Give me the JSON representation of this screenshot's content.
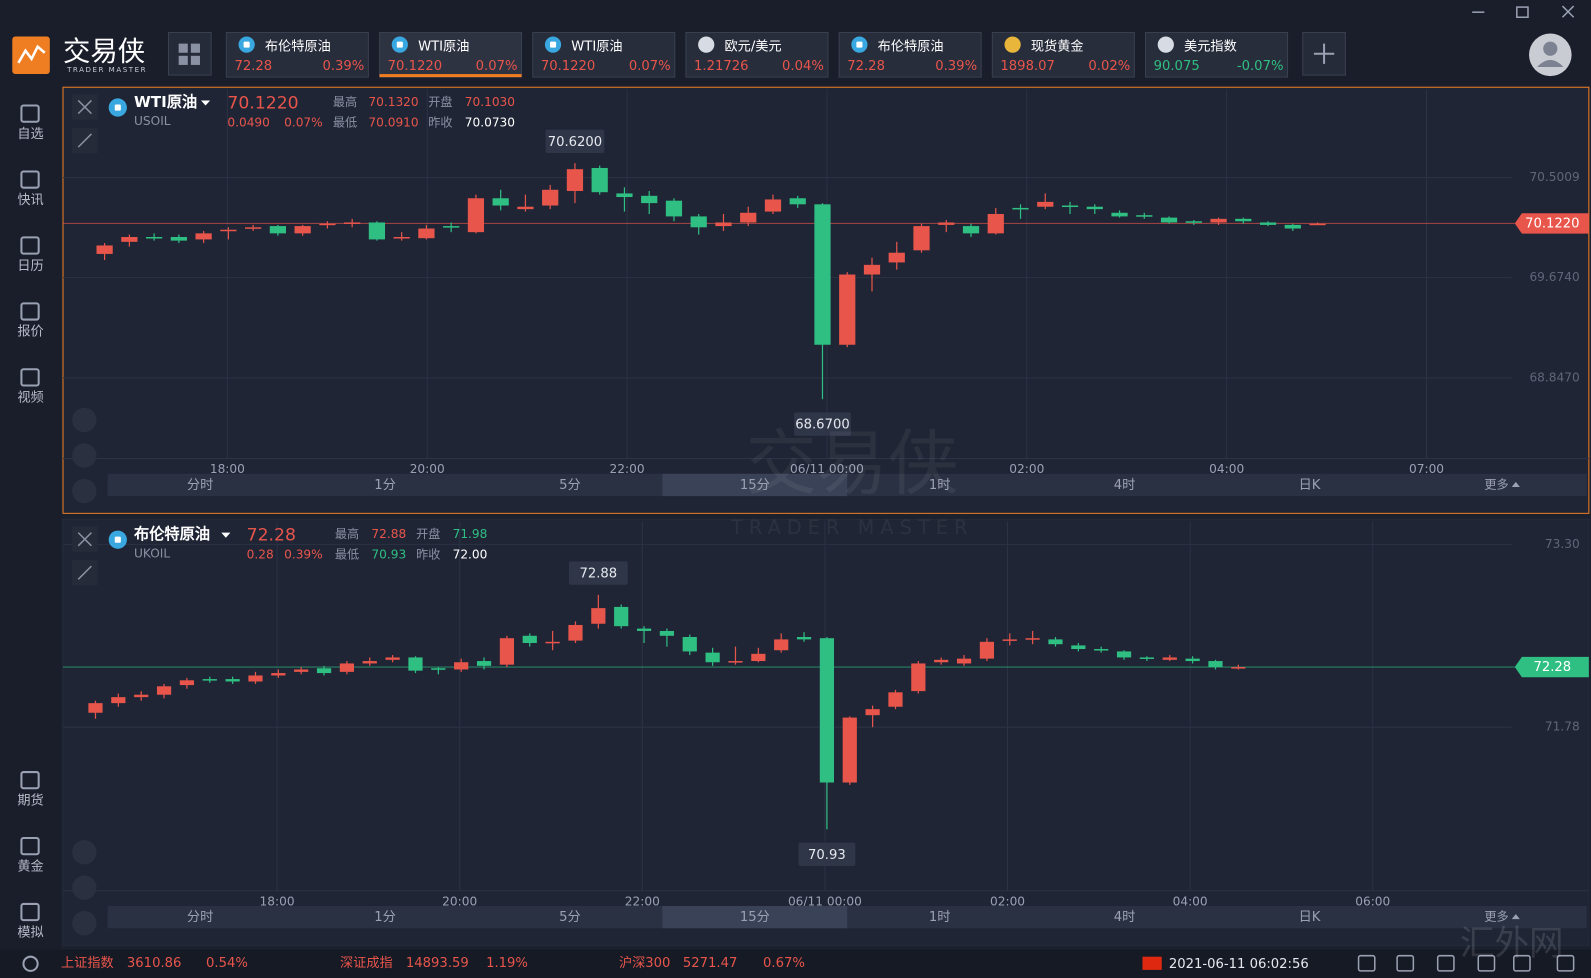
{
  "app": {
    "name": "交易侠",
    "subtitle": "TRADER MASTER",
    "site_watermark": "汇外网"
  },
  "tabs": [
    {
      "name": "布伦特原油",
      "price": "72.28",
      "change": "0.39%"
    },
    {
      "name": "WTI原油",
      "price": "70.1220",
      "change": "0.07%"
    },
    {
      "name": "WTI原油",
      "price": "70.1220",
      "change": "0.07%"
    },
    {
      "name": "欧元/美元",
      "price": "1.21726",
      "change": "0.04%"
    },
    {
      "name": "布伦特原油",
      "price": "72.28",
      "change": "0.39%"
    },
    {
      "name": "现货黄金",
      "price": "1898.07",
      "change": "0.02%"
    },
    {
      "name": "美元指数",
      "price": "90.075",
      "change": "-0.07%"
    }
  ],
  "sidebar": {
    "top": [
      "自选",
      "快讯",
      "日历",
      "报价",
      "视频"
    ],
    "bottom": [
      "期货",
      "黄金",
      "模拟"
    ]
  },
  "panels": [
    {
      "name": "WTI原油",
      "symbol": "USOIL",
      "price": "70.1220",
      "change": "0.0490",
      "change_pct": "0.07%",
      "stats": [
        {
          "label": "最高",
          "value": "70.1320",
          "color": "#e8554b"
        },
        {
          "label": "开盘",
          "value": "70.1030",
          "color": "#e8554b"
        },
        {
          "label": "最低",
          "value": "70.0910",
          "color": "#e8554b"
        },
        {
          "label": "昨收",
          "value": "70.0730",
          "color": "#ffffff"
        }
      ],
      "ylim": [
        68.18,
        71.23
      ],
      "yticks": [
        70.5009,
        {
          "value": 69.674,
          "label": "69.6740"
        },
        {
          "value": 68.847,
          "label": "68.8470"
        }
      ],
      "xticks": [
        "18:00",
        "20:00",
        "22:00",
        "06/11 00:00",
        "02:00",
        "04:00",
        "07:00"
      ],
      "high_marker": "70.6200",
      "low_marker": "68.6700",
      "candles": [
        [
          69.87,
          69.96,
          69.82,
          69.94
        ],
        [
          69.97,
          70.03,
          69.93,
          70.01
        ],
        [
          70.01,
          70.04,
          69.98,
          70.0
        ],
        [
          70.01,
          70.03,
          69.96,
          69.98
        ],
        [
          69.99,
          70.06,
          69.96,
          70.04
        ],
        [
          70.06,
          70.09,
          69.99,
          70.07
        ],
        [
          70.08,
          70.11,
          70.06,
          70.09
        ],
        [
          70.1,
          70.11,
          70.02,
          70.04
        ],
        [
          70.04,
          70.11,
          70.02,
          70.1
        ],
        [
          70.11,
          70.14,
          70.08,
          70.12
        ],
        [
          70.12,
          70.16,
          70.09,
          70.13
        ],
        [
          70.13,
          70.14,
          69.98,
          69.99
        ],
        [
          70.0,
          70.05,
          69.98,
          70.01
        ],
        [
          70.0,
          70.11,
          69.99,
          70.08
        ],
        [
          70.1,
          70.13,
          70.05,
          70.09
        ],
        [
          70.05,
          70.36,
          70.04,
          70.33
        ],
        [
          70.33,
          70.4,
          70.23,
          70.27
        ],
        [
          70.24,
          70.36,
          70.22,
          70.26
        ],
        [
          70.27,
          70.44,
          70.24,
          70.4
        ],
        [
          70.39,
          70.62,
          70.29,
          70.57
        ],
        [
          70.58,
          70.6,
          70.36,
          70.38
        ],
        [
          70.37,
          70.42,
          70.22,
          70.34
        ],
        [
          70.35,
          70.39,
          70.2,
          70.29
        ],
        [
          70.31,
          70.33,
          70.14,
          70.18
        ],
        [
          70.18,
          70.2,
          70.03,
          70.09
        ],
        [
          70.1,
          70.2,
          70.06,
          70.13
        ],
        [
          70.13,
          70.26,
          70.1,
          70.21
        ],
        [
          70.22,
          70.36,
          70.2,
          70.32
        ],
        [
          70.33,
          70.35,
          70.25,
          70.28
        ],
        [
          70.28,
          70.29,
          68.67,
          69.12
        ],
        [
          69.12,
          69.72,
          69.1,
          69.7
        ],
        [
          69.7,
          69.84,
          69.56,
          69.78
        ],
        [
          69.8,
          69.97,
          69.74,
          69.88
        ],
        [
          69.9,
          70.12,
          69.88,
          70.1
        ],
        [
          70.11,
          70.15,
          70.05,
          70.13
        ],
        [
          70.1,
          70.12,
          70.01,
          70.04
        ],
        [
          70.04,
          70.25,
          70.03,
          70.2
        ],
        [
          70.25,
          70.28,
          70.16,
          70.24
        ],
        [
          70.26,
          70.37,
          70.24,
          70.3
        ],
        [
          70.27,
          70.3,
          70.2,
          70.26
        ],
        [
          70.26,
          70.28,
          70.2,
          70.24
        ],
        [
          70.21,
          70.23,
          70.17,
          70.18
        ],
        [
          70.19,
          70.21,
          70.16,
          70.18
        ],
        [
          70.17,
          70.18,
          70.12,
          70.13
        ],
        [
          70.14,
          70.15,
          70.11,
          70.13
        ],
        [
          70.13,
          70.17,
          70.11,
          70.16
        ],
        [
          70.16,
          70.17,
          70.12,
          70.14
        ],
        [
          70.13,
          70.14,
          70.1,
          70.11
        ],
        [
          70.11,
          70.12,
          70.06,
          70.08
        ],
        [
          70.11,
          70.13,
          70.11,
          70.12
        ]
      ],
      "timeframes": [
        "分时",
        "1分",
        "5分",
        "15分",
        "1时",
        "4时",
        "日K"
      ],
      "more": "更多"
    },
    {
      "name": "布伦特原油",
      "symbol": "UKOIL",
      "price": "72.28",
      "change": "0.28",
      "change_pct": "0.39%",
      "stats": [
        {
          "label": "最高",
          "value": "72.88",
          "color": "#e8554b"
        },
        {
          "label": "开盘",
          "value": "71.98",
          "color": "#2fbf82"
        },
        {
          "label": "最低",
          "value": "70.93",
          "color": "#2fbf82"
        },
        {
          "label": "昨收",
          "value": "72.00",
          "color": "#ffffff"
        }
      ],
      "ylim": [
        70.42,
        73.44
      ],
      "yticks": [
        {
          "value": 73.3,
          "label": "73.30"
        },
        71.78
      ],
      "xticks": [
        "18:00",
        "20:00",
        "22:00",
        "06/11 00:00",
        "02:00",
        "04:00",
        "06:00"
      ],
      "high_marker": "72.88",
      "low_marker": "70.93",
      "candles": [
        [
          71.9,
          72.0,
          71.85,
          71.98
        ],
        [
          71.98,
          72.06,
          71.95,
          72.03
        ],
        [
          72.03,
          72.08,
          72.0,
          72.05
        ],
        [
          72.05,
          72.14,
          72.02,
          72.12
        ],
        [
          72.13,
          72.19,
          72.1,
          72.17
        ],
        [
          72.18,
          72.2,
          72.15,
          72.17
        ],
        [
          72.18,
          72.2,
          72.14,
          72.16
        ],
        [
          72.16,
          72.24,
          72.14,
          72.21
        ],
        [
          72.21,
          72.26,
          72.19,
          72.23
        ],
        [
          72.24,
          72.28,
          72.22,
          72.26
        ],
        [
          72.27,
          72.29,
          72.21,
          72.23
        ],
        [
          72.24,
          72.33,
          72.22,
          72.31
        ],
        [
          72.31,
          72.36,
          72.29,
          72.33
        ],
        [
          72.34,
          72.38,
          72.32,
          72.36
        ],
        [
          72.36,
          72.37,
          72.23,
          72.25
        ],
        [
          72.27,
          72.28,
          72.22,
          72.26
        ],
        [
          72.26,
          72.35,
          72.24,
          72.32
        ],
        [
          72.33,
          72.36,
          72.26,
          72.29
        ],
        [
          72.3,
          72.54,
          72.28,
          72.52
        ],
        [
          72.54,
          72.56,
          72.45,
          72.48
        ],
        [
          72.48,
          72.58,
          72.42,
          72.49
        ],
        [
          72.5,
          72.66,
          72.48,
          72.63
        ],
        [
          72.64,
          72.88,
          72.6,
          72.77
        ],
        [
          72.78,
          72.8,
          72.6,
          72.62
        ],
        [
          72.6,
          72.62,
          72.48,
          72.58
        ],
        [
          72.58,
          72.6,
          72.45,
          72.54
        ],
        [
          72.53,
          72.55,
          72.38,
          72.41
        ],
        [
          72.4,
          72.44,
          72.29,
          72.32
        ],
        [
          72.33,
          72.45,
          72.3,
          72.33
        ],
        [
          72.33,
          72.44,
          72.32,
          72.39
        ],
        [
          72.42,
          72.56,
          72.4,
          72.51
        ],
        [
          72.53,
          72.57,
          72.49,
          72.51
        ],
        [
          72.52,
          72.53,
          70.93,
          71.32
        ],
        [
          71.32,
          71.87,
          71.3,
          71.86
        ],
        [
          71.88,
          71.96,
          71.78,
          71.93
        ],
        [
          71.95,
          72.09,
          71.93,
          72.07
        ],
        [
          72.08,
          72.33,
          72.06,
          72.31
        ],
        [
          72.32,
          72.36,
          72.3,
          72.34
        ],
        [
          72.31,
          72.38,
          72.29,
          72.35
        ],
        [
          72.35,
          72.52,
          72.33,
          72.49
        ],
        [
          72.5,
          72.56,
          72.46,
          72.51
        ],
        [
          72.51,
          72.58,
          72.47,
          72.52
        ],
        [
          72.51,
          72.53,
          72.45,
          72.47
        ],
        [
          72.46,
          72.48,
          72.41,
          72.43
        ],
        [
          72.43,
          72.45,
          72.4,
          72.42
        ],
        [
          72.41,
          72.42,
          72.34,
          72.36
        ],
        [
          72.36,
          72.37,
          72.33,
          72.35
        ],
        [
          72.34,
          72.38,
          72.33,
          72.36
        ],
        [
          72.35,
          72.37,
          72.31,
          72.33
        ],
        [
          72.33,
          72.34,
          72.26,
          72.28
        ],
        [
          72.28,
          72.3,
          72.26,
          72.28
        ]
      ],
      "timeframes": [
        "分时",
        "1分",
        "5分",
        "15分",
        "1时",
        "4时",
        "日K"
      ],
      "more": "更多"
    }
  ],
  "status_bar": {
    "indices": [
      {
        "name": "上证指数",
        "value": "3610.86",
        "change": "0.54%"
      },
      {
        "name": "深证成指",
        "value": "14893.59",
        "change": "1.19%"
      },
      {
        "name": "沪深300",
        "value": "5271.47",
        "change": "0.67%"
      }
    ],
    "datetime": "2021-06-11 06:02:56"
  }
}
